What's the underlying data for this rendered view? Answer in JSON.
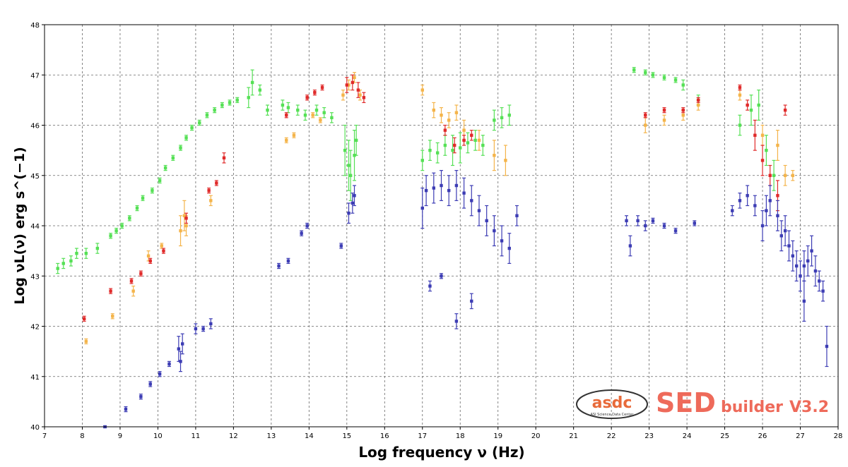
{
  "chart_data": {
    "type": "scatter",
    "title": "",
    "xlabel": "Log frequency ν (Hz)",
    "ylabel": "Log νL(ν) erg s^(−1)",
    "xlim": [
      7,
      28
    ],
    "ylim": [
      40,
      48
    ],
    "x_ticks": [
      "7",
      "8",
      "9",
      "10",
      "11",
      "12",
      "13",
      "14",
      "15",
      "16",
      "17",
      "18",
      "19",
      "20",
      "21",
      "22",
      "23",
      "24",
      "25",
      "26",
      "27",
      "28"
    ],
    "y_ticks": [
      "40",
      "41",
      "42",
      "43",
      "44",
      "45",
      "46",
      "47",
      "48"
    ],
    "grid": true,
    "colors": {
      "green": "#55e055",
      "orange": "#f4b44a",
      "red": "#e02a2a",
      "blue": "#3c3cb4"
    },
    "series": [
      {
        "color": "green",
        "x": [
          7.35,
          7.5,
          7.7,
          7.85,
          8.1,
          8.4,
          8.75,
          8.9,
          9.05,
          9.25,
          9.45,
          9.6,
          9.85,
          10.05,
          10.2,
          10.4,
          10.6,
          10.75,
          10.9,
          11.1,
          11.3,
          11.5,
          11.7,
          11.9,
          12.1,
          12.4,
          12.5,
          12.7,
          12.9,
          13.3,
          13.45,
          13.7,
          13.9,
          14.2,
          14.4,
          14.6,
          14.95,
          15.05,
          15.1,
          15.2,
          15.25,
          17.0,
          17.2,
          17.4,
          17.6,
          17.8,
          18.0,
          18.2,
          18.4,
          18.6,
          18.9,
          19.1,
          19.3,
          22.6,
          22.9,
          23.1,
          23.4,
          23.7,
          23.9,
          24.3,
          25.4,
          25.7,
          25.9,
          26.1,
          26.3
        ],
        "y": [
          43.15,
          43.25,
          43.3,
          43.45,
          43.45,
          43.55,
          43.8,
          43.9,
          44.0,
          44.15,
          44.35,
          44.55,
          44.7,
          44.9,
          45.15,
          45.35,
          45.55,
          45.75,
          45.95,
          46.05,
          46.2,
          46.3,
          46.4,
          46.45,
          46.5,
          46.55,
          46.85,
          46.7,
          46.3,
          46.4,
          46.35,
          46.3,
          46.2,
          46.3,
          46.25,
          46.15,
          45.5,
          45.2,
          45.0,
          45.4,
          45.7,
          45.3,
          45.5,
          45.45,
          45.6,
          45.5,
          45.55,
          45.65,
          45.7,
          45.6,
          46.1,
          46.15,
          46.2,
          47.1,
          47.05,
          47.0,
          46.95,
          46.9,
          46.8,
          46.5,
          46.0,
          46.3,
          46.4,
          45.5,
          45.0
        ],
        "yerr": [
          0.1,
          0.1,
          0.1,
          0.1,
          0.1,
          0.1,
          0.05,
          0.05,
          0.05,
          0.05,
          0.05,
          0.05,
          0.05,
          0.05,
          0.05,
          0.05,
          0.05,
          0.05,
          0.05,
          0.05,
          0.05,
          0.05,
          0.05,
          0.05,
          0.05,
          0.2,
          0.25,
          0.1,
          0.1,
          0.1,
          0.1,
          0.1,
          0.1,
          0.1,
          0.1,
          0.1,
          0.5,
          0.5,
          0.5,
          0.5,
          0.3,
          0.2,
          0.2,
          0.2,
          0.2,
          0.3,
          0.3,
          0.2,
          0.2,
          0.2,
          0.2,
          0.2,
          0.2,
          0.05,
          0.05,
          0.05,
          0.05,
          0.05,
          0.1,
          0.1,
          0.2,
          0.3,
          0.3,
          0.3,
          0.3
        ]
      },
      {
        "color": "orange",
        "x": [
          8.1,
          8.8,
          9.35,
          9.75,
          10.1,
          10.6,
          10.7,
          10.75,
          11.4,
          13.4,
          13.6,
          14.1,
          14.3,
          14.9,
          15.05,
          15.2,
          15.35,
          17.0,
          17.3,
          17.5,
          17.7,
          17.9,
          18.1,
          18.5,
          18.9,
          19.2,
          22.9,
          23.4,
          23.9,
          24.3,
          25.4,
          26.0,
          26.4,
          26.6,
          26.8
        ],
        "y": [
          41.7,
          42.2,
          42.7,
          43.4,
          43.6,
          43.9,
          44.2,
          44.0,
          44.5,
          45.7,
          45.8,
          46.2,
          46.1,
          46.6,
          46.8,
          46.95,
          46.6,
          46.7,
          46.3,
          46.2,
          46.1,
          46.25,
          45.9,
          45.7,
          45.4,
          45.3,
          46.0,
          46.1,
          46.2,
          46.4,
          46.6,
          45.8,
          45.6,
          45.0,
          45.0
        ],
        "yerr": [
          0.05,
          0.05,
          0.1,
          0.1,
          0.05,
          0.3,
          0.3,
          0.2,
          0.1,
          0.05,
          0.05,
          0.05,
          0.05,
          0.1,
          0.1,
          0.1,
          0.1,
          0.1,
          0.15,
          0.15,
          0.15,
          0.15,
          0.2,
          0.2,
          0.3,
          0.3,
          0.15,
          0.1,
          0.1,
          0.1,
          0.1,
          0.2,
          0.3,
          0.2,
          0.1
        ]
      },
      {
        "color": "red",
        "x": [
          8.05,
          8.75,
          9.3,
          9.55,
          9.8,
          10.15,
          10.75,
          11.35,
          11.55,
          11.75,
          13.4,
          13.95,
          14.15,
          14.35,
          15.0,
          15.15,
          15.3,
          15.45,
          17.6,
          17.85,
          18.1,
          18.3,
          22.9,
          23.4,
          23.9,
          24.3,
          25.4,
          25.6,
          25.8,
          26.0,
          26.2,
          26.4,
          26.6
        ],
        "y": [
          42.15,
          42.7,
          42.9,
          43.05,
          43.3,
          43.5,
          44.15,
          44.7,
          44.85,
          45.35,
          46.2,
          46.55,
          46.65,
          46.75,
          46.8,
          46.85,
          46.7,
          46.55,
          45.9,
          45.6,
          45.7,
          45.8,
          46.2,
          46.3,
          46.3,
          46.5,
          46.75,
          46.4,
          45.8,
          45.3,
          45.0,
          44.6,
          46.3
        ],
        "yerr": [
          0.05,
          0.05,
          0.05,
          0.05,
          0.05,
          0.05,
          0.1,
          0.05,
          0.05,
          0.1,
          0.05,
          0.05,
          0.05,
          0.05,
          0.15,
          0.15,
          0.15,
          0.1,
          0.1,
          0.15,
          0.1,
          0.1,
          0.05,
          0.05,
          0.05,
          0.05,
          0.05,
          0.1,
          0.3,
          0.3,
          0.2,
          0.3,
          0.1
        ]
      },
      {
        "color": "blue",
        "x": [
          8.6,
          9.15,
          9.55,
          9.8,
          10.05,
          10.3,
          10.55,
          10.6,
          10.65,
          11.0,
          11.2,
          11.4,
          13.2,
          13.45,
          13.8,
          13.95,
          14.85,
          15.05,
          15.15,
          15.2,
          17.0,
          17.1,
          17.3,
          17.5,
          17.7,
          17.9,
          18.1,
          18.3,
          18.5,
          18.7,
          18.9,
          19.1,
          19.3,
          19.5,
          17.2,
          17.5,
          17.9,
          18.3,
          22.4,
          22.5,
          22.7,
          22.9,
          23.1,
          23.4,
          23.7,
          24.2,
          25.2,
          25.4,
          25.6,
          25.8,
          26.0,
          26.1,
          26.2,
          26.4,
          26.5,
          26.6,
          26.7,
          26.8,
          26.9,
          27.0,
          27.1,
          27.2,
          27.3,
          27.4,
          27.5,
          27.6,
          27.1,
          27.7
        ],
        "y": [
          40.0,
          40.35,
          40.6,
          40.85,
          41.05,
          41.25,
          41.55,
          41.3,
          41.65,
          41.95,
          41.95,
          42.05,
          43.2,
          43.3,
          43.85,
          44.0,
          43.6,
          44.25,
          44.45,
          44.6,
          44.35,
          44.7,
          44.75,
          44.8,
          44.7,
          44.8,
          44.65,
          44.5,
          44.3,
          44.1,
          43.9,
          43.7,
          43.55,
          44.2,
          42.8,
          43.0,
          42.1,
          42.5,
          44.1,
          43.6,
          44.1,
          44.0,
          44.1,
          44.0,
          43.9,
          44.05,
          44.3,
          44.5,
          44.6,
          44.4,
          44.0,
          44.3,
          44.5,
          44.2,
          43.8,
          43.9,
          43.6,
          43.4,
          43.2,
          43.0,
          43.2,
          43.3,
          43.5,
          43.1,
          42.9,
          42.7,
          42.5,
          41.6
        ],
        "yerr": [
          0.02,
          0.05,
          0.05,
          0.05,
          0.05,
          0.05,
          0.25,
          0.2,
          0.2,
          0.1,
          0.05,
          0.1,
          0.05,
          0.05,
          0.05,
          0.05,
          0.05,
          0.2,
          0.2,
          0.2,
          0.4,
          0.3,
          0.3,
          0.3,
          0.3,
          0.3,
          0.3,
          0.3,
          0.3,
          0.3,
          0.3,
          0.3,
          0.3,
          0.2,
          0.1,
          0.05,
          0.15,
          0.15,
          0.1,
          0.2,
          0.1,
          0.1,
          0.05,
          0.05,
          0.05,
          0.05,
          0.1,
          0.15,
          0.2,
          0.2,
          0.3,
          0.3,
          0.3,
          0.3,
          0.3,
          0.3,
          0.3,
          0.3,
          0.3,
          0.3,
          0.3,
          0.3,
          0.3,
          0.3,
          0.2,
          0.2,
          0.4,
          0.4
        ]
      }
    ]
  },
  "logo": {
    "brand": "asdc",
    "subtitle": "ASI Science Data Center",
    "product_main": "SED",
    "product_sub": "builder",
    "version": "V3.2"
  }
}
